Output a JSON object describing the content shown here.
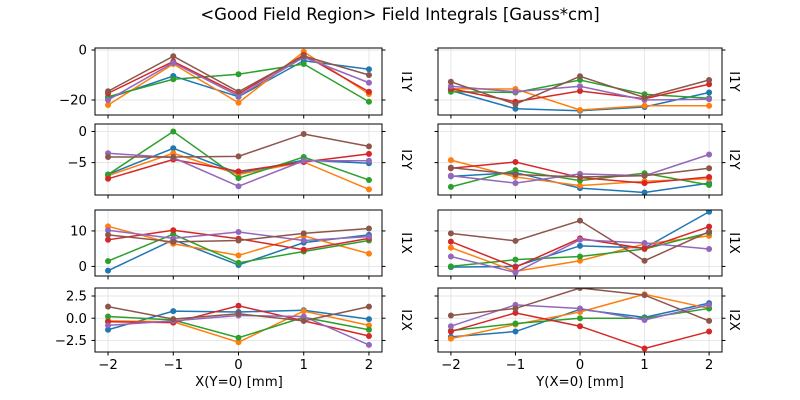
{
  "figure": {
    "title": "<Good Field Region> Field Integrals [Gauss*cm]",
    "xlabel_left": "X(Y=0) [mm]",
    "xlabel_right": "Y(X=0) [mm]"
  },
  "colors": {
    "blue": "#1f77b4",
    "orange": "#ff7f0e",
    "green": "#2ca02c",
    "red": "#d62728",
    "purple": "#9467bd",
    "brown": "#8c564b",
    "grid": "#e4e4e4",
    "spine": "#000000",
    "text": "#000000"
  },
  "x": [
    -2,
    -1,
    0,
    1,
    2
  ],
  "xlim": [
    -2.2,
    2.2
  ],
  "xticks": [
    {
      "v": -2,
      "label": "−2"
    },
    {
      "v": -1,
      "label": "−1"
    },
    {
      "v": 0,
      "label": "0"
    },
    {
      "v": 1,
      "label": "1"
    },
    {
      "v": 2,
      "label": "2"
    }
  ],
  "chart_data": [
    {
      "type": "line",
      "row": 0,
      "col": 0,
      "row_label": "I1Y",
      "xlabel": "X(Y=0) [mm]",
      "grid": true,
      "legend": false,
      "ylim": [
        -26.0,
        0.8
      ],
      "yticks": [
        {
          "v": 0,
          "label": "0"
        },
        {
          "v": -20,
          "label": "−20"
        }
      ],
      "series": [
        {
          "name": "blue",
          "color": "#1f77b4",
          "values": [
            -19.3,
            -10.4,
            -18.7,
            -4.3,
            -7.7
          ]
        },
        {
          "name": "orange",
          "color": "#ff7f0e",
          "values": [
            -22.0,
            -5.6,
            -21.1,
            -0.7,
            -17.6
          ]
        },
        {
          "name": "green",
          "color": "#2ca02c",
          "values": [
            -18.7,
            -11.7,
            -9.7,
            -5.6,
            -20.7
          ]
        },
        {
          "name": "red",
          "color": "#d62728",
          "values": [
            -17.3,
            -4.6,
            -17.6,
            -2.0,
            -16.7
          ]
        },
        {
          "name": "purple",
          "color": "#9467bd",
          "values": [
            -20.0,
            -5.1,
            -18.4,
            -2.9,
            -13.1
          ]
        },
        {
          "name": "brown",
          "color": "#8c564b",
          "values": [
            -16.5,
            -2.5,
            -16.7,
            -2.4,
            -10.0
          ]
        }
      ]
    },
    {
      "type": "line",
      "row": 0,
      "col": 1,
      "row_label": "I1Y",
      "xlabel": "Y(X=0) [mm]",
      "grid": true,
      "legend": false,
      "ylim": [
        -26.0,
        0.8
      ],
      "yticks": [
        {
          "v": 0,
          "label": "0"
        },
        {
          "v": -20,
          "label": "−20"
        }
      ],
      "series": [
        {
          "name": "blue",
          "color": "#1f77b4",
          "values": [
            -16.2,
            -23.5,
            -24.3,
            -22.8,
            -17.0
          ]
        },
        {
          "name": "orange",
          "color": "#ff7f0e",
          "values": [
            -15.5,
            -15.6,
            -24.0,
            -22.3,
            -22.3
          ]
        },
        {
          "name": "green",
          "color": "#2ca02c",
          "values": [
            -16.7,
            -17.0,
            -12.0,
            -17.7,
            -19.3
          ]
        },
        {
          "name": "red",
          "color": "#d62728",
          "values": [
            -15.5,
            -20.7,
            -16.4,
            -19.5,
            -13.7
          ]
        },
        {
          "name": "purple",
          "color": "#9467bd",
          "values": [
            -14.5,
            -16.7,
            -14.5,
            -20.0,
            -19.7
          ]
        },
        {
          "name": "brown",
          "color": "#8c564b",
          "values": [
            -12.7,
            -21.7,
            -10.5,
            -19.0,
            -12.0
          ]
        }
      ]
    },
    {
      "type": "line",
      "row": 1,
      "col": 0,
      "row_label": "I2Y",
      "xlabel": "X(Y=0) [mm]",
      "grid": true,
      "legend": false,
      "ylim": [
        -10.2,
        1.2
      ],
      "yticks": [
        {
          "v": 0,
          "label": "0"
        },
        {
          "v": -5,
          "label": "−5"
        }
      ],
      "series": [
        {
          "name": "blue",
          "color": "#1f77b4",
          "values": [
            -6.9,
            -2.7,
            -6.7,
            -4.6,
            -5.1
          ]
        },
        {
          "name": "orange",
          "color": "#ff7f0e",
          "values": [
            -7.1,
            -3.5,
            -6.9,
            -4.9,
            -9.3
          ]
        },
        {
          "name": "green",
          "color": "#2ca02c",
          "values": [
            -6.9,
            0.0,
            -7.5,
            -4.1,
            -7.8
          ]
        },
        {
          "name": "red",
          "color": "#d62728",
          "values": [
            -7.6,
            -4.5,
            -6.4,
            -4.9,
            -3.6
          ]
        },
        {
          "name": "purple",
          "color": "#9467bd",
          "values": [
            -3.5,
            -4.2,
            -8.8,
            -4.7,
            -4.7
          ]
        },
        {
          "name": "brown",
          "color": "#8c564b",
          "values": [
            -4.1,
            -4.1,
            -4.0,
            -0.4,
            -2.4
          ]
        }
      ]
    },
    {
      "type": "line",
      "row": 1,
      "col": 1,
      "row_label": "I2Y",
      "xlabel": "Y(X=0) [mm]",
      "grid": true,
      "legend": false,
      "ylim": [
        -10.2,
        1.2
      ],
      "yticks": [
        {
          "v": 0,
          "label": "0"
        },
        {
          "v": -5,
          "label": "−5"
        }
      ],
      "series": [
        {
          "name": "blue",
          "color": "#1f77b4",
          "values": [
            -7.2,
            -6.6,
            -9.1,
            -9.8,
            -8.3
          ]
        },
        {
          "name": "orange",
          "color": "#ff7f0e",
          "values": [
            -4.6,
            -7.3,
            -8.7,
            -8.0,
            -7.6
          ]
        },
        {
          "name": "green",
          "color": "#2ca02c",
          "values": [
            -8.9,
            -6.2,
            -7.9,
            -6.7,
            -8.6
          ]
        },
        {
          "name": "red",
          "color": "#d62728",
          "values": [
            -5.9,
            -4.9,
            -7.4,
            -8.3,
            -7.3
          ]
        },
        {
          "name": "purple",
          "color": "#9467bd",
          "values": [
            -7.1,
            -8.3,
            -6.8,
            -7.1,
            -3.7
          ]
        },
        {
          "name": "brown",
          "color": "#8c564b",
          "values": [
            -5.8,
            -6.9,
            -7.3,
            -7.1,
            -5.9
          ]
        }
      ]
    },
    {
      "type": "line",
      "row": 2,
      "col": 0,
      "row_label": "I1X",
      "xlabel": "X(Y=0) [mm]",
      "grid": true,
      "legend": false,
      "ylim": [
        -2.7,
        15.9
      ],
      "yticks": [
        {
          "v": 10,
          "label": "10"
        },
        {
          "v": 0,
          "label": "0"
        }
      ],
      "series": [
        {
          "name": "blue",
          "color": "#1f77b4",
          "values": [
            -1.2,
            7.5,
            0.4,
            6.7,
            8.9
          ]
        },
        {
          "name": "orange",
          "color": "#ff7f0e",
          "values": [
            11.3,
            6.4,
            3.1,
            8.6,
            3.6
          ]
        },
        {
          "name": "green",
          "color": "#2ca02c",
          "values": [
            1.5,
            9.1,
            1.0,
            4.2,
            7.3
          ]
        },
        {
          "name": "red",
          "color": "#d62728",
          "values": [
            7.5,
            10.2,
            7.8,
            4.7,
            7.9
          ]
        },
        {
          "name": "purple",
          "color": "#9467bd",
          "values": [
            10.2,
            7.9,
            9.7,
            7.3,
            8.4
          ]
        },
        {
          "name": "brown",
          "color": "#8c564b",
          "values": [
            8.9,
            6.9,
            7.3,
            9.3,
            10.7
          ]
        }
      ]
    },
    {
      "type": "line",
      "row": 2,
      "col": 1,
      "row_label": "I1X",
      "xlabel": "Y(X=0) [mm]",
      "grid": true,
      "legend": false,
      "ylim": [
        -2.7,
        15.9
      ],
      "yticks": [
        {
          "v": 10,
          "label": "10"
        },
        {
          "v": 0,
          "label": "0"
        }
      ],
      "series": [
        {
          "name": "blue",
          "color": "#1f77b4",
          "values": [
            -0.2,
            0.0,
            5.8,
            5.2,
            15.4
          ]
        },
        {
          "name": "orange",
          "color": "#ff7f0e",
          "values": [
            5.3,
            -1.4,
            1.6,
            6.3,
            8.6
          ]
        },
        {
          "name": "green",
          "color": "#2ca02c",
          "values": [
            0.0,
            1.9,
            2.8,
            4.9,
            9.5
          ]
        },
        {
          "name": "red",
          "color": "#d62728",
          "values": [
            7.0,
            -0.2,
            7.9,
            5.0,
            11.2
          ]
        },
        {
          "name": "purple",
          "color": "#9467bd",
          "values": [
            2.8,
            -1.7,
            7.5,
            6.6,
            4.9
          ]
        },
        {
          "name": "brown",
          "color": "#8c564b",
          "values": [
            9.3,
            7.2,
            12.9,
            1.6,
            9.8
          ]
        }
      ]
    },
    {
      "type": "line",
      "row": 3,
      "col": 0,
      "row_label": "I2X",
      "xlabel": "X(Y=0) [mm]",
      "grid": true,
      "legend": false,
      "ylim": [
        -3.8,
        3.4
      ],
      "yticks": [
        {
          "v": 2.5,
          "label": "2.5"
        },
        {
          "v": 0,
          "label": "0.0"
        },
        {
          "v": -2.5,
          "label": "−2.5"
        }
      ],
      "series": [
        {
          "name": "blue",
          "color": "#1f77b4",
          "values": [
            -1.3,
            0.8,
            0.7,
            0.9,
            -0.1
          ]
        },
        {
          "name": "orange",
          "color": "#ff7f0e",
          "values": [
            -0.3,
            -0.4,
            -2.7,
            0.8,
            -0.8
          ]
        },
        {
          "name": "green",
          "color": "#2ca02c",
          "values": [
            0.2,
            -0.2,
            -2.2,
            0.1,
            -1.3
          ]
        },
        {
          "name": "red",
          "color": "#d62728",
          "values": [
            -0.4,
            -0.5,
            1.4,
            -0.3,
            -2.0
          ]
        },
        {
          "name": "purple",
          "color": "#9467bd",
          "values": [
            -0.8,
            -0.3,
            0.3,
            0.2,
            -3.0
          ]
        },
        {
          "name": "brown",
          "color": "#8c564b",
          "values": [
            1.3,
            -0.1,
            0.5,
            -0.3,
            1.3
          ]
        }
      ]
    },
    {
      "type": "line",
      "row": 3,
      "col": 1,
      "row_label": "I2X",
      "xlabel": "Y(X=0) [mm]",
      "grid": true,
      "legend": false,
      "ylim": [
        -3.8,
        3.4
      ],
      "yticks": [
        {
          "v": 2.5,
          "label": "2.5"
        },
        {
          "v": 0,
          "label": "0.0"
        },
        {
          "v": -2.5,
          "label": "−2.5"
        }
      ],
      "series": [
        {
          "name": "blue",
          "color": "#1f77b4",
          "values": [
            -2.1,
            -1.5,
            1.0,
            0.1,
            1.7
          ]
        },
        {
          "name": "orange",
          "color": "#ff7f0e",
          "values": [
            -2.3,
            -0.7,
            0.7,
            2.7,
            1.1
          ]
        },
        {
          "name": "green",
          "color": "#2ca02c",
          "values": [
            -1.4,
            -0.6,
            0.0,
            0.0,
            1.1
          ]
        },
        {
          "name": "red",
          "color": "#d62728",
          "values": [
            -1.5,
            0.6,
            -0.9,
            -3.4,
            -1.5
          ]
        },
        {
          "name": "purple",
          "color": "#9467bd",
          "values": [
            -0.9,
            1.5,
            1.1,
            -0.2,
            1.5
          ]
        },
        {
          "name": "brown",
          "color": "#8c564b",
          "values": [
            0.3,
            1.1,
            3.4,
            2.6,
            -0.3
          ]
        }
      ]
    }
  ]
}
